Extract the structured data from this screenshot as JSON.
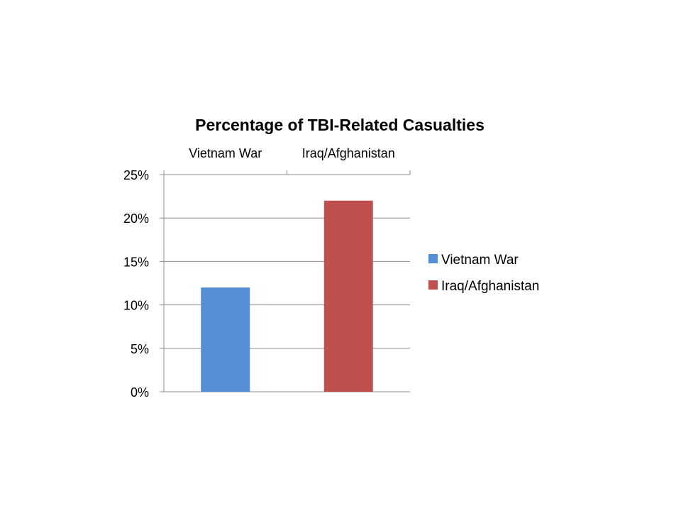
{
  "chart_data": {
    "type": "bar",
    "title": "Percentage of TBI-Related Casualties",
    "xlabel": "",
    "ylabel": "",
    "categories": [
      "Vietnam War",
      "Iraq/Afghanistan"
    ],
    "values": [
      12,
      22
    ],
    "ylim": [
      0,
      25
    ],
    "yticks": [
      0,
      5,
      10,
      15,
      20,
      25
    ],
    "ytick_labels": [
      "0%",
      "5%",
      "10%",
      "15%",
      "20%",
      "25%"
    ],
    "category_axis_position": "top",
    "grid": true,
    "legend_position": "right",
    "legend": [
      {
        "label": "Vietnam War",
        "color": "#558ED5"
      },
      {
        "label": "Iraq/Afghanistan",
        "color": "#C0504D"
      }
    ],
    "colors": [
      "#558ED5",
      "#C0504D"
    ]
  }
}
